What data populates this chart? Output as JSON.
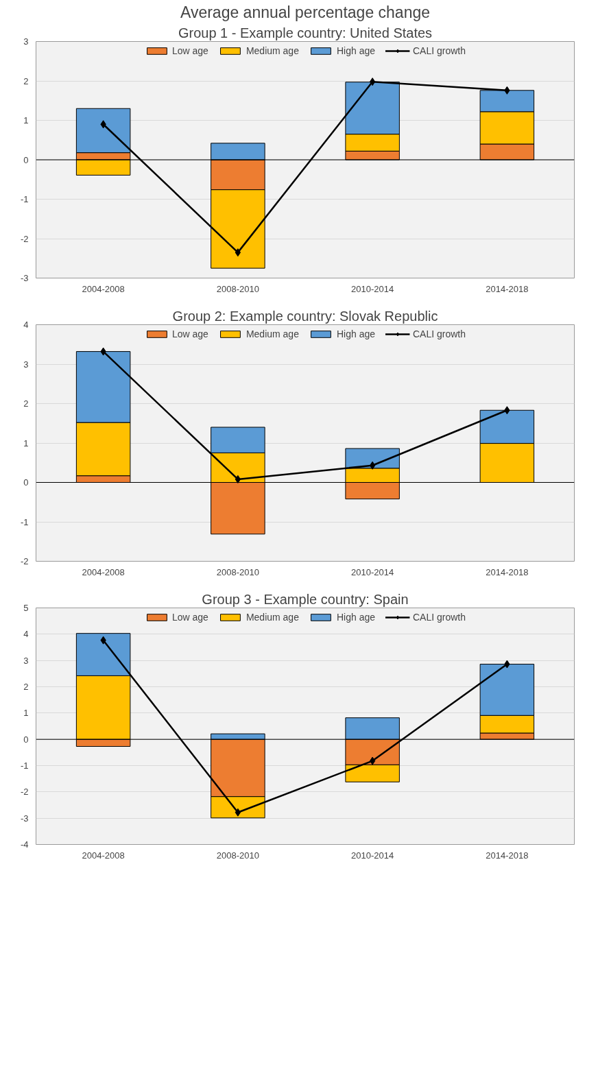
{
  "chart_data": [
    {
      "type": "bar",
      "stacked": true,
      "title": "Average annual percentage change",
      "subtitle": "Group 1 - Example country: United States",
      "categories": [
        "2004-2008",
        "2008-2010",
        "2010-2014",
        "2014-2018"
      ],
      "ylim": [
        -3,
        3
      ],
      "yticks": [
        -3,
        -2,
        -1,
        0,
        1,
        2,
        3
      ],
      "grid": "y",
      "legend": "top",
      "marker": "diamond",
      "series": [
        {
          "name": "Low age",
          "color": "#ed7d31",
          "values": [
            0.18,
            -0.76,
            0.22,
            0.4
          ]
        },
        {
          "name": "Medium age",
          "color": "#ffc000",
          "values": [
            -0.39,
            -1.99,
            0.43,
            0.82
          ]
        },
        {
          "name": "High age",
          "color": "#5b9bd5",
          "values": [
            1.12,
            0.42,
            1.32,
            0.54
          ]
        },
        {
          "name": "CALI growth",
          "type": "line",
          "color": "#000000",
          "values": [
            0.9,
            -2.35,
            1.98,
            1.76
          ]
        }
      ]
    },
    {
      "type": "bar",
      "stacked": true,
      "title": "Group 2: Example country: Slovak Republic",
      "categories": [
        "2004-2008",
        "2008-2010",
        "2010-2014",
        "2014-2018"
      ],
      "ylim": [
        -2,
        4
      ],
      "yticks": [
        -2,
        -1,
        0,
        1,
        2,
        3,
        4
      ],
      "grid": "y",
      "legend": "top",
      "marker": "diamond",
      "series": [
        {
          "name": "Low age",
          "color": "#ed7d31",
          "values": [
            0.17,
            -1.31,
            -0.42,
            null
          ]
        },
        {
          "name": "Medium age",
          "color": "#ffc000",
          "values": [
            1.35,
            0.75,
            0.36,
            0.99
          ]
        },
        {
          "name": "High age",
          "color": "#5b9bd5",
          "values": [
            1.8,
            0.65,
            0.5,
            0.84
          ]
        },
        {
          "name": "CALI growth",
          "type": "line",
          "color": "#000000",
          "values": [
            3.32,
            0.08,
            0.43,
            1.83
          ]
        }
      ]
    },
    {
      "type": "bar",
      "stacked": true,
      "title": "Group 3 - Example country: Spain",
      "categories": [
        "2004-2008",
        "2008-2010",
        "2010-2014",
        "2014-2018"
      ],
      "ylim": [
        -4,
        5
      ],
      "yticks": [
        -4,
        -3,
        -2,
        -1,
        0,
        1,
        2,
        3,
        4,
        5
      ],
      "grid": "y",
      "legend": "top",
      "marker": "diamond",
      "series": [
        {
          "name": "Low age",
          "color": "#ed7d31",
          "values": [
            -0.27,
            -2.18,
            -0.97,
            0.24
          ]
        },
        {
          "name": "Medium age",
          "color": "#ffc000",
          "values": [
            2.42,
            -0.81,
            -0.65,
            0.67
          ]
        },
        {
          "name": "High age",
          "color": "#5b9bd5",
          "values": [
            1.61,
            0.21,
            0.82,
            1.95
          ]
        },
        {
          "name": "CALI growth",
          "type": "line",
          "color": "#000000",
          "values": [
            3.77,
            -2.78,
            -0.82,
            2.86
          ]
        }
      ]
    }
  ]
}
